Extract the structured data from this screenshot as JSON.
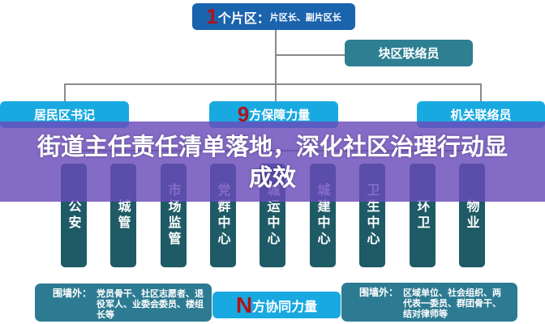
{
  "top": {
    "number": "1",
    "label": "个片区：",
    "sub": "片区长、副片区长"
  },
  "liaison": "块区联络员",
  "row2": {
    "left": "居民区书记",
    "middle_number": "9",
    "middle_label": "方保障力量",
    "right": "机关联络员"
  },
  "columns": [
    "公安",
    "城管",
    "市场监管",
    "党群中心",
    "城运中心",
    "城建中心",
    "卫生中心",
    "环卫",
    "物业"
  ],
  "bottom": {
    "left_label": "围墙外：",
    "left_text": "党员骨干、社区志愿者、退役军人、业委会委员、楼组长等",
    "middle_number": "N",
    "middle_label": "方协同力量",
    "right_label": "围墙外：",
    "right_text": "区域单位、社会组织、两代表一委员、群团骨干、结对律师等"
  },
  "headline": "街道主任责任清单落地，深化社区治理行动显成效",
  "colors": {
    "top": "#1a63ad",
    "liaison": "#2e7f92",
    "light": "#19a9e1",
    "column": "#1f5b66",
    "accent": "#b0121b",
    "overlay": "#694bb9"
  }
}
